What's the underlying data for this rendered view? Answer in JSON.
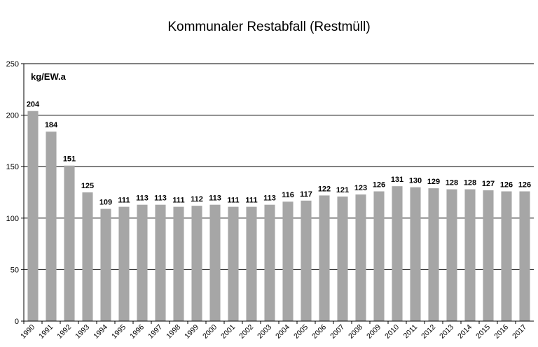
{
  "chart_data": {
    "type": "bar",
    "title": "Kommunaler Restabfall (Restmüll)",
    "ylabel": "kg/EW.a",
    "xlabel": "",
    "ylim": [
      0,
      250
    ],
    "yticks": [
      0,
      50,
      100,
      150,
      200,
      250
    ],
    "grid": true,
    "bar_color": "#a6a6a6",
    "categories": [
      "1990",
      "1991",
      "1992",
      "1993",
      "1994",
      "1995",
      "1996",
      "1997",
      "1998",
      "1999",
      "2000",
      "2001",
      "2002",
      "2003",
      "2004",
      "2005",
      "2006",
      "2007",
      "2008",
      "2009",
      "2010",
      "2011",
      "2012",
      "2013",
      "2014",
      "2015",
      "2016",
      "2017"
    ],
    "values": [
      204,
      184,
      151,
      125,
      109,
      111,
      113,
      113,
      111,
      112,
      113,
      111,
      111,
      113,
      116,
      117,
      122,
      121,
      123,
      126,
      131,
      130,
      129,
      128,
      128,
      127,
      126,
      126
    ]
  }
}
